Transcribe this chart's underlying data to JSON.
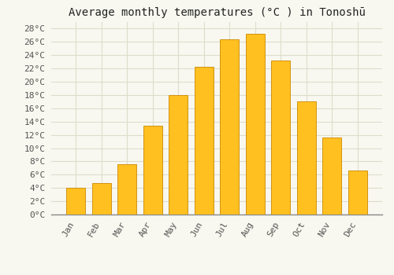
{
  "title": "Average monthly temperatures (°C ) in Tonoshū",
  "months": [
    "Jan",
    "Feb",
    "Mar",
    "Apr",
    "May",
    "Jun",
    "Jul",
    "Aug",
    "Sep",
    "Oct",
    "Nov",
    "Dec"
  ],
  "temperatures": [
    4.0,
    4.7,
    7.6,
    13.4,
    18.0,
    22.2,
    26.4,
    27.2,
    23.2,
    17.1,
    11.6,
    6.6
  ],
  "bar_color": "#FFC020",
  "bar_edge_color": "#CC8800",
  "ylim": [
    0,
    29
  ],
  "yticks": [
    0,
    2,
    4,
    6,
    8,
    10,
    12,
    14,
    16,
    18,
    20,
    22,
    24,
    26,
    28
  ],
  "background_color": "#F8F8F0",
  "grid_color": "#DDDDCC",
  "title_fontsize": 10,
  "tick_fontsize": 8,
  "font_family": "monospace"
}
